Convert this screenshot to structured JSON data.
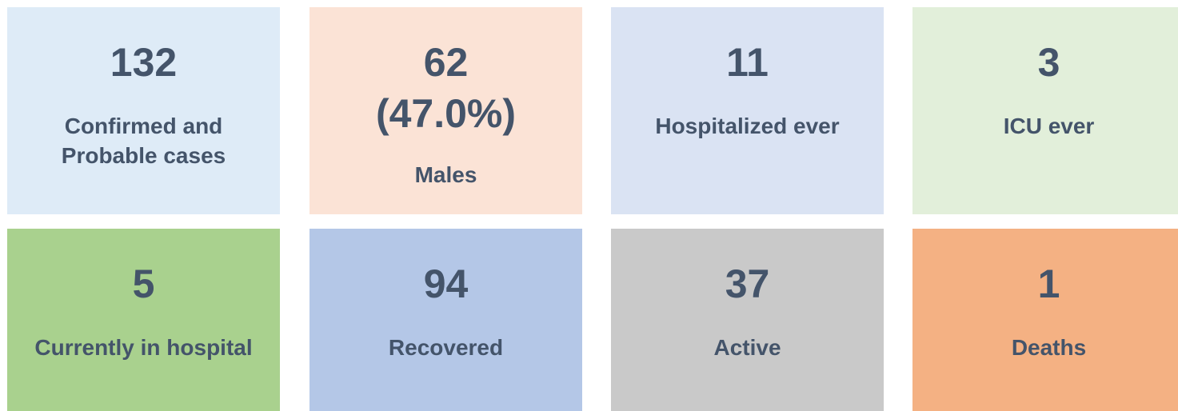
{
  "tiles": [
    {
      "value": 132,
      "label": "Confirmed and Probable cases",
      "color": "#deebf7"
    },
    {
      "value": 62,
      "percent": "(47.0%)",
      "label": "Males",
      "color": "#fbe3d6"
    },
    {
      "value": 11,
      "label": "Hospitalized ever",
      "color": "#dae3f3"
    },
    {
      "value": 3,
      "label": "ICU ever",
      "color": "#e2efda"
    },
    {
      "value": 5,
      "label": "Currently in hospital",
      "color": "#a9d18e"
    },
    {
      "value": 94,
      "label": "Recovered",
      "color": "#b4c7e7"
    },
    {
      "value": 37,
      "label": "Active",
      "color": "#c9c9c9"
    },
    {
      "value": 1,
      "label": "Deaths",
      "color": "#f4b183"
    }
  ]
}
